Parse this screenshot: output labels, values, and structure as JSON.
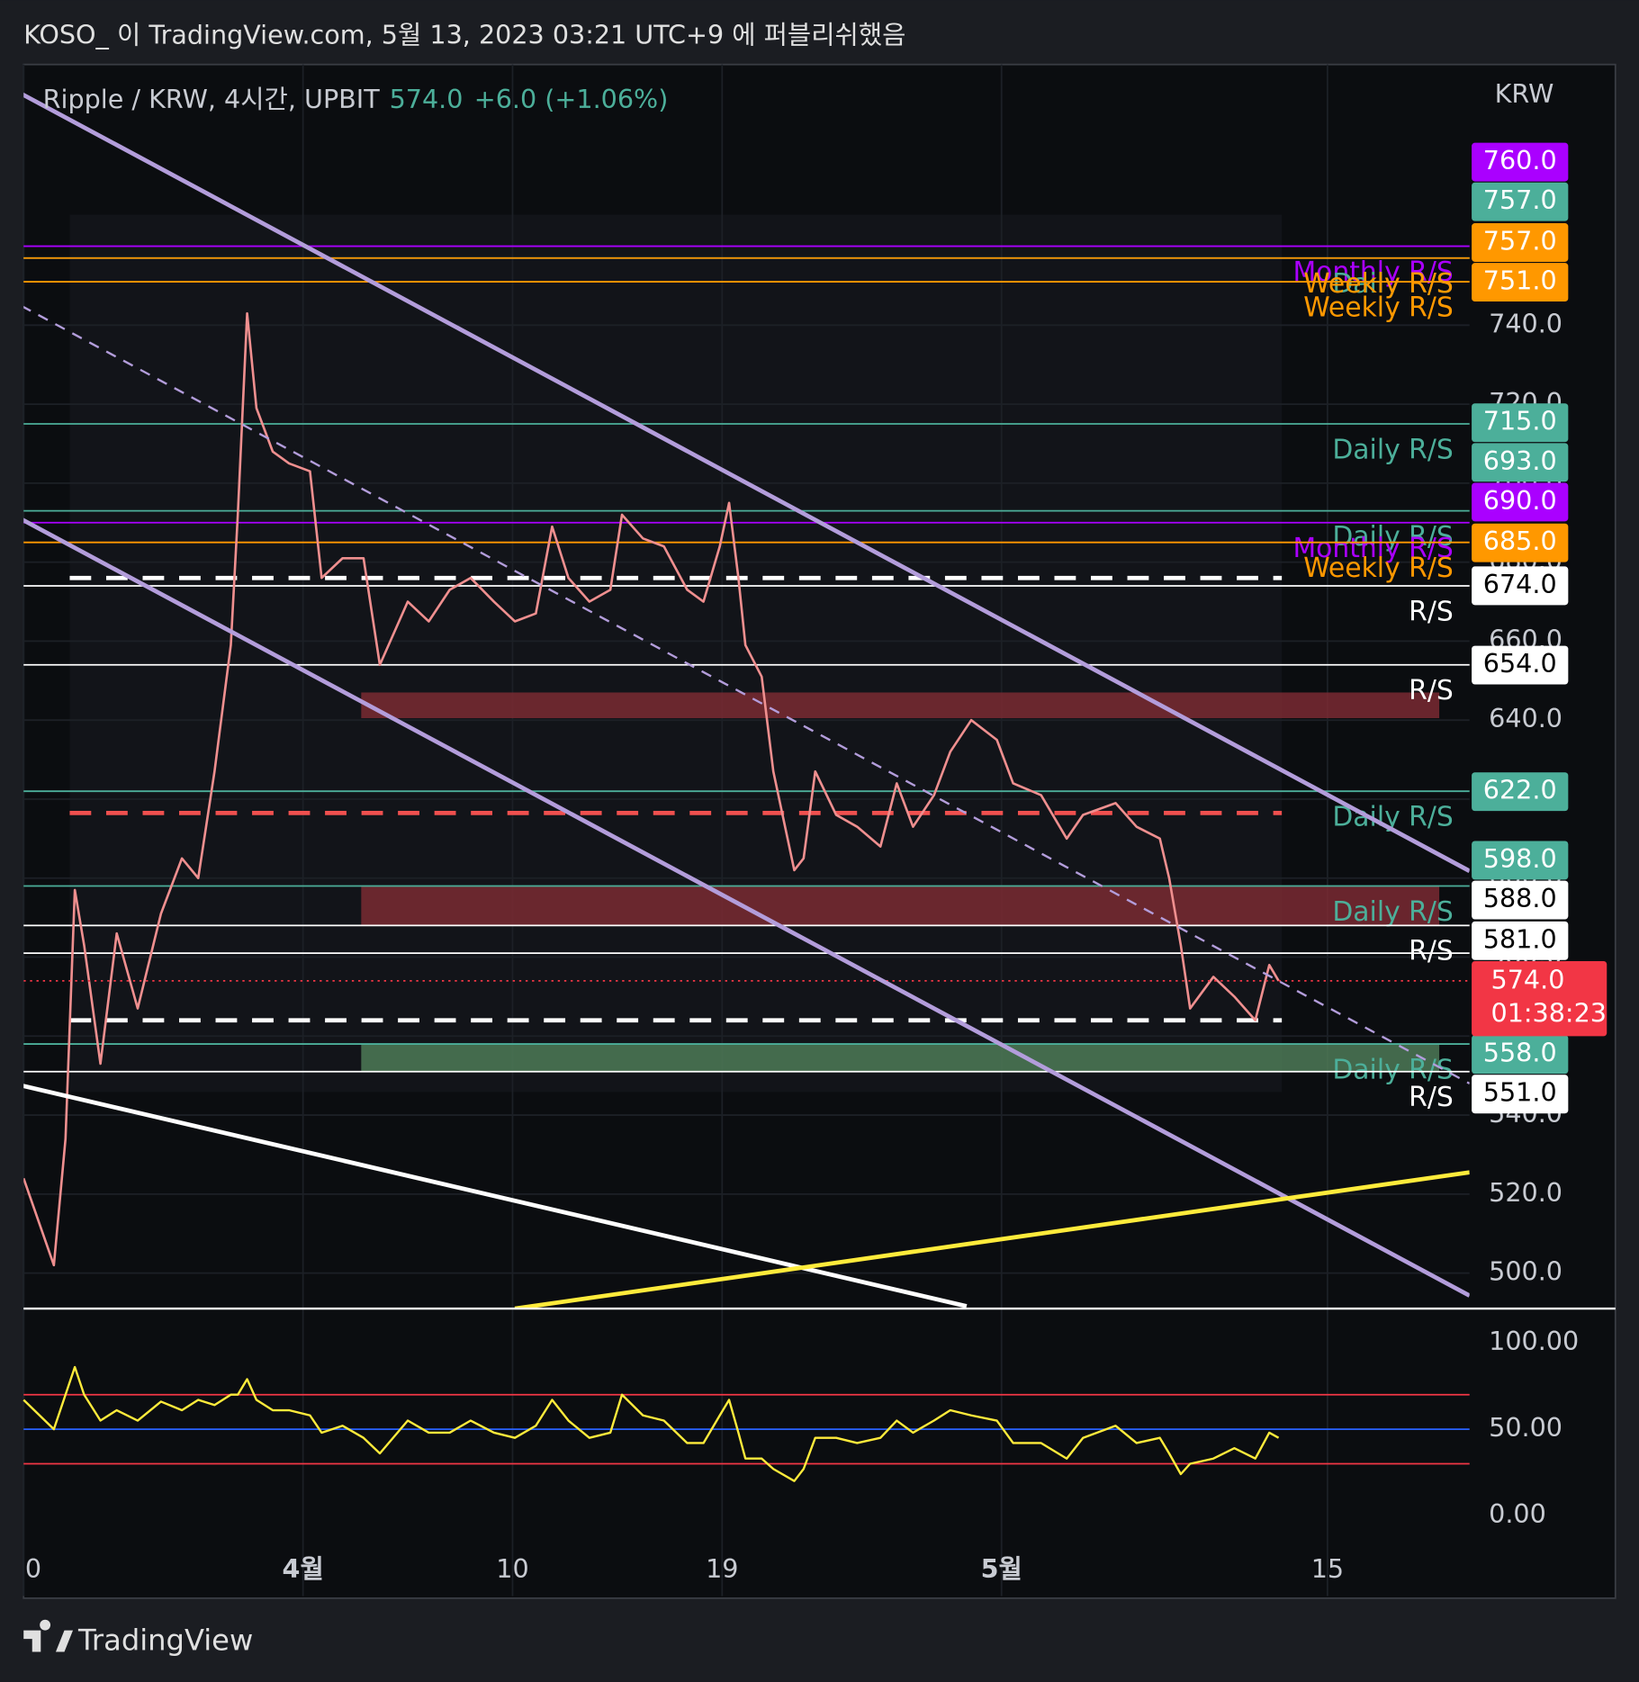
{
  "header": "KOSO_ 이 TradingView.com, 5월 13, 2023 03:21 UTC+9 에 퍼블리쉬했음",
  "footer": "TradingView",
  "chart_data": [
    {
      "type": "line",
      "legend_title": "Ripple / KRW, 4시간, UPBIT",
      "change": "+6.0 (+1.06%)",
      "currency": "KRW",
      "last_price": {
        "value": 574,
        "label": "574.0",
        "countdown": "01:38:23"
      },
      "color": "#ef8f8f",
      "x": [
        79.0,
        80.3,
        80.8,
        81.2,
        81.6,
        82.3,
        83.0,
        83.9,
        84.9,
        85.8,
        86.5,
        87.2,
        87.9,
        88.2,
        88.6,
        89.0,
        89.7,
        90.4,
        91.3,
        91.8,
        92.7,
        93.6,
        94.3,
        95.5,
        96.4,
        97.3,
        98.2,
        99.2,
        100.1,
        101.0,
        101.7,
        102.4,
        103.3,
        104.2,
        104.7,
        105.6,
        106.5,
        107.5,
        108.2,
        108.9,
        109.3,
        109.7,
        110.0,
        110.7,
        111.2,
        112.1,
        112.5,
        113.0,
        113.9,
        114.8,
        115.8,
        116.5,
        117.2,
        118.1,
        118.8,
        119.7,
        120.8,
        121.5,
        122.7,
        123.8,
        124.5,
        125.9,
        126.8,
        127.8,
        128.2,
        128.7,
        129.1,
        130.1,
        131.0,
        131.9,
        132.5,
        132.9
      ],
      "values": [
        524,
        502,
        534,
        597,
        583,
        553,
        586,
        567,
        591,
        605,
        600,
        627,
        659,
        692,
        743,
        719,
        708,
        705,
        703,
        676,
        681,
        681,
        654,
        670,
        665,
        673,
        676,
        670,
        665,
        667,
        689,
        676,
        670,
        673,
        692,
        686,
        684,
        673,
        670,
        684,
        695,
        676,
        659,
        651,
        627,
        602,
        605,
        627,
        616,
        613,
        608,
        624,
        613,
        621,
        632,
        640,
        635,
        624,
        621,
        610,
        616,
        619,
        613,
        610,
        600,
        583,
        567,
        575,
        570,
        564,
        578,
        574
      ],
      "xlim": [
        79,
        141.1
      ],
      "xticks": [
        {
          "value": 79,
          "label": "0"
        },
        {
          "value": 91,
          "label": "4월"
        },
        {
          "value": 100,
          "label": "10"
        },
        {
          "value": 109,
          "label": "19"
        },
        {
          "value": 121,
          "label": "5월"
        },
        {
          "value": 135,
          "label": "15"
        }
      ],
      "ylim": [
        491,
        806
      ],
      "yticks": [
        {
          "value": 500,
          "label": "500.0"
        },
        {
          "value": 520,
          "label": "520.0"
        },
        {
          "value": 540,
          "label": "540.0"
        },
        {
          "value": 560,
          "label": "560.0"
        },
        {
          "value": 580,
          "label": "580.0"
        },
        {
          "value": 600,
          "label": "600.0"
        },
        {
          "value": 620,
          "label": "620.0"
        },
        {
          "value": 640,
          "label": "640.0"
        },
        {
          "value": 660,
          "label": "660.0"
        },
        {
          "value": 680,
          "label": "680.0"
        },
        {
          "value": 700,
          "label": "700.0"
        },
        {
          "value": 720,
          "label": "720.0"
        },
        {
          "value": 740,
          "label": "740.0"
        }
      ],
      "grid": true,
      "levels": [
        {
          "value": 760,
          "label": "760.0",
          "color": "#aa00ff",
          "name": "Monthly R/S"
        },
        {
          "value": 757,
          "label": "757.0",
          "color": "#4caf9a",
          "name": "Daily R/S"
        },
        {
          "value": 757,
          "label": "757.0",
          "color": "#ff9800",
          "name": "Weekly R/S"
        },
        {
          "value": 751,
          "label": "751.0",
          "color": "#ff9800",
          "name": "Weekly R/S"
        },
        {
          "value": 715,
          "label": "715.0",
          "color": "#4caf9a",
          "name": "Daily R/S"
        },
        {
          "value": 693,
          "label": "693.0",
          "color": "#4caf9a",
          "name": "Daily R/S"
        },
        {
          "value": 690,
          "label": "690.0",
          "color": "#aa00ff",
          "name": "Monthly R/S"
        },
        {
          "value": 685,
          "label": "685.0",
          "color": "#ff9800",
          "name": "Weekly R/S"
        },
        {
          "value": 674,
          "label": "674.0",
          "color": "#ffffff",
          "name": "R/S"
        },
        {
          "value": 654,
          "label": "654.0",
          "color": "#ffffff",
          "name": "R/S"
        },
        {
          "value": 622,
          "label": "622.0",
          "color": "#4caf9a",
          "name": "Daily R/S"
        },
        {
          "value": 598,
          "label": "598.0",
          "color": "#4caf9a",
          "name": "Daily R/S"
        },
        {
          "value": 588,
          "label": "588.0",
          "color": "#ffffff",
          "name": "R/S"
        },
        {
          "value": 581,
          "label": "581.0",
          "color": "#ffffff"
        },
        {
          "value": 558,
          "label": "558.0",
          "color": "#4caf9a",
          "name": "Daily R/S"
        },
        {
          "value": 551,
          "label": "551.0",
          "color": "#ffffff",
          "name": "R/S"
        }
      ],
      "zones": [
        {
          "from": 93.5,
          "to": 139.8,
          "top": 647,
          "bottom": 640.5,
          "color": "#7a2a33"
        },
        {
          "from": 93.5,
          "to": 139.8,
          "top": 598,
          "bottom": 588,
          "color": "#7a2a33"
        },
        {
          "from": 93.5,
          "to": 139.8,
          "top": 558,
          "bottom": 551,
          "color": "#4d7a57"
        }
      ],
      "profile_lines": [
        {
          "value": 676,
          "color": "#ffffff"
        },
        {
          "value": 616.5,
          "color": "#f0504f"
        },
        {
          "value": 564,
          "color": "#ffffff"
        }
      ],
      "drawings": [
        {
          "start": [
            78.9,
            798.6
          ],
          "end": [
            141.1,
            601.8
          ],
          "color": "#b39ddb",
          "dashed": false
        },
        {
          "start": [
            78.9,
            690.9
          ],
          "end": [
            141.1,
            494.3
          ],
          "color": "#b39ddb",
          "dashed": false
        },
        {
          "start": [
            78.9,
            744.9
          ],
          "end": [
            141.1,
            548.0
          ],
          "color": "#b39ddb",
          "dashed": true
        },
        {
          "start": [
            78.9,
            547.5
          ],
          "end": [
            119.5,
            491.6
          ],
          "color": "#ffffff",
          "dashed": false
        },
        {
          "start": [
            100.1,
            491.0
          ],
          "end": [
            141.1,
            525.5
          ],
          "color": "#ffeb3b",
          "dashed": false
        }
      ]
    },
    {
      "type": "line",
      "color": "#ffeb3b",
      "values": [
        67,
        50,
        70,
        86,
        70,
        55,
        61,
        55,
        66,
        61,
        67,
        64,
        70,
        70,
        79,
        67,
        61,
        61,
        58,
        48,
        52,
        45,
        36,
        55,
        48,
        48,
        55,
        48,
        45,
        52,
        67,
        55,
        45,
        48,
        70,
        58,
        55,
        42,
        42,
        58,
        67,
        48,
        33,
        33,
        27,
        20,
        27,
        45,
        45,
        42,
        45,
        55,
        48,
        55,
        61,
        58,
        55,
        42,
        42,
        33,
        45,
        52,
        42,
        45,
        36,
        24,
        30,
        33,
        39,
        33,
        48,
        45
      ],
      "ylim": [
        -16.8,
        118.6
      ],
      "yticks": [
        {
          "value": 0,
          "label": "0.00"
        },
        {
          "value": 50,
          "label": "50.00"
        },
        {
          "value": 100,
          "label": "100.00"
        }
      ],
      "bands": [
        {
          "value": 70,
          "color": "#f23645"
        },
        {
          "value": 50,
          "color": "#2962ff"
        },
        {
          "value": 30,
          "color": "#f23645"
        }
      ]
    }
  ]
}
